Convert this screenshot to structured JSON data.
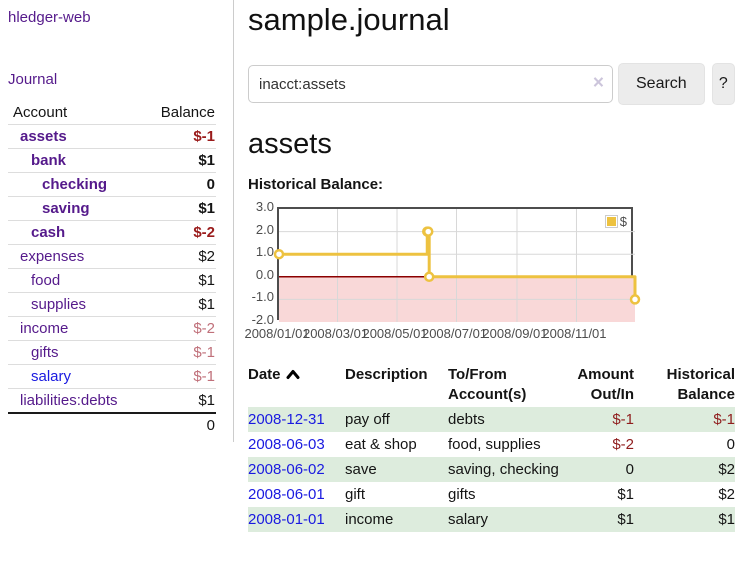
{
  "sidebar": {
    "brand": "hledger-web",
    "nav": {
      "journal": "Journal"
    },
    "table_headers": {
      "account": "Account",
      "balance": "Balance"
    },
    "accounts": [
      {
        "name": "assets",
        "indent": 1,
        "matched": true,
        "link_color": "purple",
        "balance": "$-1",
        "balance_tone": "negative-strong"
      },
      {
        "name": "bank",
        "indent": 2,
        "matched": true,
        "link_color": "purple",
        "balance": "$1",
        "balance_tone": "normal"
      },
      {
        "name": "checking",
        "indent": 3,
        "matched": true,
        "link_color": "purple",
        "balance": "0",
        "balance_tone": "normal"
      },
      {
        "name": "saving",
        "indent": 3,
        "matched": true,
        "link_color": "purple",
        "balance": "$1",
        "balance_tone": "normal"
      },
      {
        "name": "cash",
        "indent": 2,
        "matched": true,
        "link_color": "purple",
        "balance": "$-2",
        "balance_tone": "negative-strong"
      },
      {
        "name": "expenses",
        "indent": 1,
        "matched": false,
        "link_color": "purple",
        "balance": "$2",
        "balance_tone": "normal"
      },
      {
        "name": "food",
        "indent": 2,
        "matched": false,
        "link_color": "purple",
        "balance": "$1",
        "balance_tone": "normal"
      },
      {
        "name": "supplies",
        "indent": 2,
        "matched": false,
        "link_color": "purple",
        "balance": "$1",
        "balance_tone": "normal"
      },
      {
        "name": "income",
        "indent": 1,
        "matched": false,
        "link_color": "purple",
        "balance": "$-2",
        "balance_tone": "negative-dim"
      },
      {
        "name": "gifts",
        "indent": 2,
        "matched": false,
        "link_color": "purple",
        "balance": "$-1",
        "balance_tone": "negative-dim"
      },
      {
        "name": "salary",
        "indent": 2,
        "matched": false,
        "link_color": "blue",
        "balance": "$-1",
        "balance_tone": "negative-dim"
      },
      {
        "name": "liabilities:debts",
        "indent": 1,
        "matched": false,
        "link_color": "purple",
        "balance": "$1",
        "balance_tone": "normal"
      }
    ],
    "total": "0"
  },
  "main": {
    "title": "sample.journal",
    "search": {
      "value": "inacct:assets",
      "clear_icon": "×",
      "search_button": "Search",
      "help_button": "?"
    },
    "account_heading": "assets",
    "chart_label": "Historical Balance:"
  },
  "chart_data": {
    "type": "line",
    "line_style": "step",
    "title": "Historical Balance",
    "series": [
      {
        "name": "$",
        "color": "#edc240",
        "points": [
          [
            "2008-01-01",
            1
          ],
          [
            "2008-06-01",
            2
          ],
          [
            "2008-06-02",
            2
          ],
          [
            "2008-06-03",
            0
          ],
          [
            "2008-12-31",
            -1
          ]
        ]
      }
    ],
    "x_start": "2008-01-01",
    "x_end": "2008-12-31",
    "xticks": [
      "2008/01/01",
      "2008/03/01",
      "2008/05/01",
      "2008/07/01",
      "2008/09/01",
      "2008/11/01"
    ],
    "yticks": [
      3.0,
      2.0,
      1.0,
      0.0,
      -1.0,
      -2.0
    ],
    "ylim": [
      -2,
      3
    ],
    "grid": true,
    "legend_position": "top-right",
    "negative_region_fill": "#f9d8d8",
    "zero_line_color": "#8b0000",
    "grid_color": "#d8d8d8"
  },
  "transactions": {
    "headers": {
      "date": "Date",
      "description": "Description",
      "accounts": "To/From Account(s)",
      "amount": "Amount Out/In",
      "balance": "Historical Balance"
    },
    "sort": {
      "column": "date",
      "direction": "ascending",
      "icon": "chevron-up"
    },
    "rows": [
      {
        "date": "2008-12-31",
        "description": "pay off",
        "accounts": "debts",
        "amount": "$-1",
        "balance": "$-1"
      },
      {
        "date": "2008-06-03",
        "description": "eat & shop",
        "accounts": "food, supplies",
        "amount": "$-2",
        "balance": "0"
      },
      {
        "date": "2008-06-02",
        "description": "save",
        "accounts": "saving, checking",
        "amount": "0",
        "balance": "$2"
      },
      {
        "date": "2008-06-01",
        "description": "gift",
        "accounts": "gifts",
        "amount": "$1",
        "balance": "$2"
      },
      {
        "date": "2008-01-01",
        "description": "income",
        "accounts": "salary",
        "amount": "$1",
        "balance": "$1"
      }
    ]
  },
  "colors": {
    "link_purple": "#551a8b",
    "link_blue": "#1a1ae0",
    "negative_strong": "#9a1b1b",
    "negative_dim": "#c0707a",
    "table_negative": "#8f1d1d",
    "row_stripe_green": "#ddecdd",
    "chart_series_gold": "#edc240",
    "chart_negative_fill": "#f9d8d8",
    "chart_zero_line": "#8b0000",
    "chart_border": "#4d4d4d"
  }
}
